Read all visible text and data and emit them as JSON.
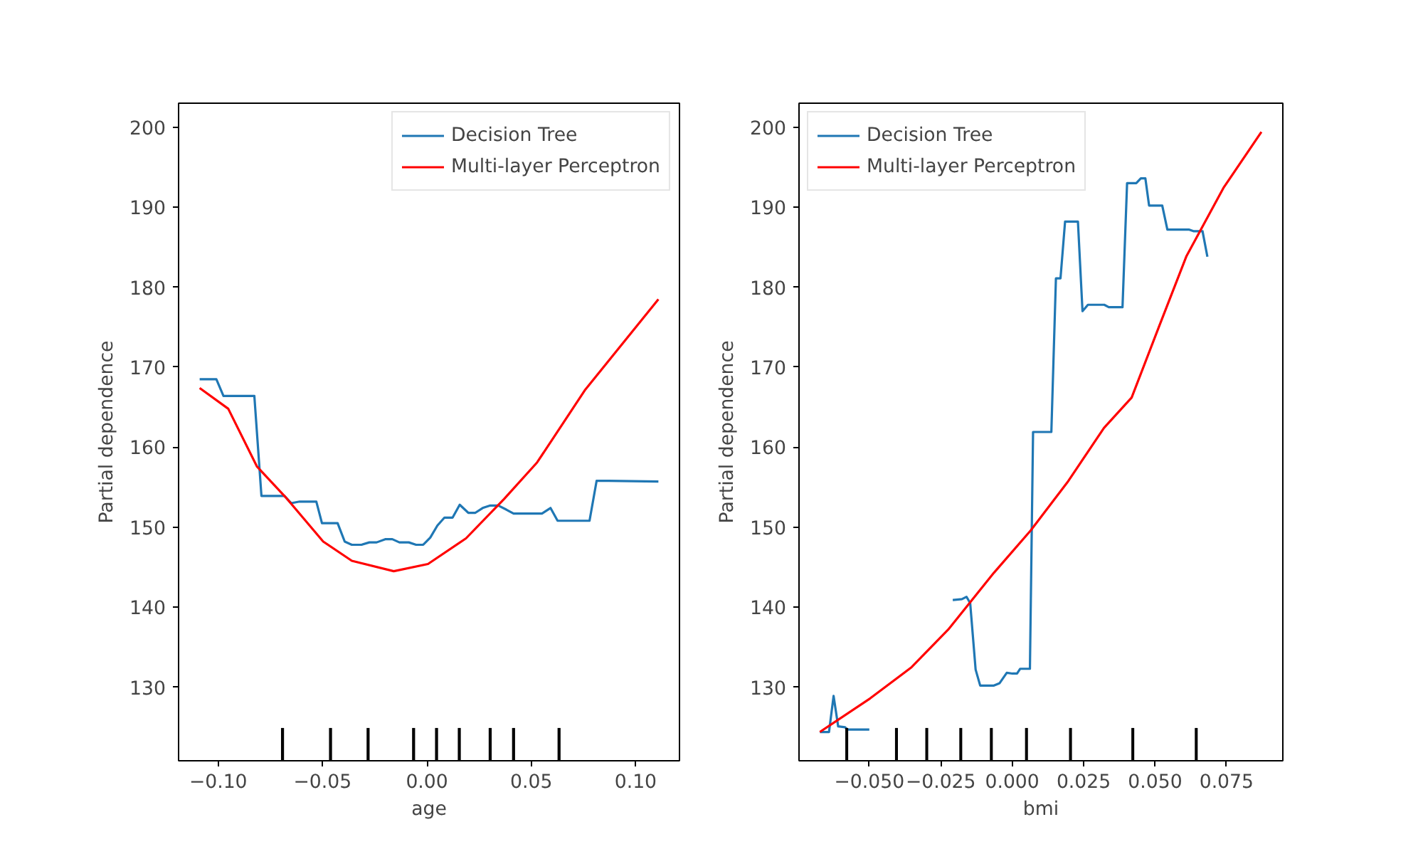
{
  "chart_data": [
    {
      "type": "line",
      "xlabel": "age",
      "ylabel": "Partial dependence",
      "legend": "top right",
      "grid": false,
      "line_style": "solid",
      "xlim": [
        -0.119,
        0.121
      ],
      "ylim": [
        120.8,
        203.0
      ],
      "xticks": [
        {
          "value": -0.1,
          "label": "−0.10"
        },
        {
          "value": -0.05,
          "label": "−0.05"
        },
        {
          "value": 0.0,
          "label": "0.00"
        },
        {
          "value": 0.05,
          "label": "0.05"
        },
        {
          "value": 0.1,
          "label": "0.10"
        }
      ],
      "yticks": [
        130,
        140,
        150,
        160,
        170,
        180,
        190,
        200
      ],
      "series": [
        {
          "name": "Decision Tree",
          "color": "#1f77b4",
          "x": [
            -0.1089,
            -0.1009,
            -0.0975,
            -0.0827,
            -0.0793,
            -0.0683,
            -0.065,
            -0.061,
            -0.053,
            -0.0503,
            -0.0428,
            -0.0394,
            -0.036,
            -0.0314,
            -0.0276,
            -0.0241,
            -0.02,
            -0.0166,
            -0.0132,
            -0.0087,
            -0.0052,
            -0.0018,
            0.0016,
            0.005,
            0.0084,
            0.0123,
            0.0157,
            0.0198,
            0.0232,
            0.0267,
            0.0301,
            0.0342,
            0.038,
            0.0415,
            0.0551,
            0.0592,
            0.0626,
            0.0779,
            0.0813,
            0.087,
            0.1109
          ],
          "values": [
            168.5,
            168.5,
            166.4,
            166.4,
            153.9,
            153.9,
            153.0,
            153.2,
            153.2,
            150.5,
            150.5,
            148.2,
            147.8,
            147.8,
            148.1,
            148.1,
            148.5,
            148.5,
            148.1,
            148.1,
            147.8,
            147.8,
            148.7,
            150.2,
            151.2,
            151.2,
            152.8,
            151.8,
            151.8,
            152.4,
            152.7,
            152.7,
            152.2,
            151.7,
            151.7,
            152.4,
            150.8,
            150.8,
            155.8,
            155.8,
            155.7
          ]
        },
        {
          "name": "Multi-layer Perceptron",
          "color": "#ff0000",
          "x": [
            -0.1089,
            -0.0952,
            -0.0815,
            -0.0679,
            -0.0497,
            -0.036,
            -0.0159,
            0.0005,
            0.0187,
            0.0369,
            0.0528,
            0.0756,
            0.1109
          ],
          "values": [
            167.4,
            164.8,
            157.6,
            153.8,
            148.2,
            145.8,
            144.5,
            145.4,
            148.6,
            153.5,
            158.1,
            167.1,
            178.5
          ]
        },
        {
          "type": "bar",
          "color": "#000000",
          "x": [
            -0.0692,
            -0.0462,
            -0.0282,
            -0.0064,
            0.0046,
            0.0155,
            0.0303,
            0.0415,
            0.0633
          ],
          "base": [
            120.8,
            120.8,
            120.8,
            120.8,
            120.8,
            120.8,
            120.8,
            120.8,
            120.8
          ],
          "values": [
            4.1,
            4.1,
            4.1,
            4.1,
            4.1,
            4.1,
            4.1,
            4.1,
            4.1
          ]
        }
      ]
    },
    {
      "type": "line",
      "xlabel": "bmi",
      "ylabel": "Partial dependence",
      "legend": "top left",
      "grid": false,
      "line_style": "solid",
      "xlim": [
        -0.0746,
        0.0947
      ],
      "ylim": [
        120.8,
        203.0
      ],
      "xticks": [
        {
          "value": -0.05,
          "label": "−0.050"
        },
        {
          "value": -0.025,
          "label": "−0.025"
        },
        {
          "value": 0.0,
          "label": "0.000"
        },
        {
          "value": 0.025,
          "label": "0.025"
        },
        {
          "value": 0.05,
          "label": "0.050"
        },
        {
          "value": 0.075,
          "label": "0.075"
        }
      ],
      "yticks": [
        130,
        140,
        150,
        160,
        170,
        180,
        190,
        200
      ],
      "series": [
        {
          "name": "Decision Tree",
          "color": "#1f77b4",
          "x": [
            -0.0673,
            -0.0641,
            -0.0625,
            -0.0609,
            -0.0585,
            -0.0577,
            -0.05,
            -0.0492,
            -0.0216,
            -0.0208,
            -0.0176,
            -0.016,
            -0.0147,
            -0.0128,
            -0.0112,
            -0.0064,
            -0.0044,
            -0.0019,
            0.0001,
            0.0017,
            0.0028,
            0.0062,
            0.0073,
            0.0137,
            0.0153,
            0.0169,
            0.0185,
            0.023,
            0.0246,
            0.0265,
            0.0322,
            0.0338,
            0.0386,
            0.0402,
            0.0434,
            0.045,
            0.0466,
            0.0479,
            0.0525,
            0.0543,
            0.0618,
            0.0634,
            0.0666,
            0.0683
          ],
          "values": [
            124.4,
            124.4,
            128.9,
            125.1,
            125.0,
            124.7,
            124.7,
            null,
            null,
            140.9,
            141.0,
            141.3,
            140.5,
            132.2,
            130.2,
            130.2,
            130.5,
            131.8,
            131.7,
            131.7,
            132.3,
            132.3,
            161.9,
            161.9,
            181.1,
            181.1,
            188.2,
            188.2,
            177.0,
            177.8,
            177.8,
            177.5,
            177.5,
            193.0,
            193.0,
            193.6,
            193.6,
            190.2,
            190.2,
            187.2,
            187.2,
            187.0,
            187.0,
            183.8
          ]
        },
        {
          "name": "Multi-layer Perceptron",
          "color": "#ff0000",
          "x": [
            -0.0673,
            -0.0497,
            -0.0352,
            -0.0224,
            -0.0064,
            0.0065,
            0.0193,
            0.0321,
            0.0418,
            0.0514,
            0.061,
            0.0739,
            0.0872
          ],
          "values": [
            124.4,
            128.6,
            132.5,
            137.2,
            144.3,
            149.6,
            155.6,
            162.4,
            166.2,
            175.1,
            183.9,
            192.4,
            199.4
          ]
        },
        {
          "type": "bar",
          "color": "#000000",
          "x": [
            -0.0579,
            -0.0405,
            -0.0299,
            -0.018,
            -0.0073,
            0.005,
            0.0204,
            0.0422,
            0.0644
          ],
          "base": [
            120.8,
            120.8,
            120.8,
            120.8,
            120.8,
            120.8,
            120.8,
            120.8,
            120.8
          ],
          "values": [
            4.1,
            4.1,
            4.1,
            4.1,
            4.1,
            4.1,
            4.1,
            4.1,
            4.1
          ]
        }
      ]
    }
  ]
}
